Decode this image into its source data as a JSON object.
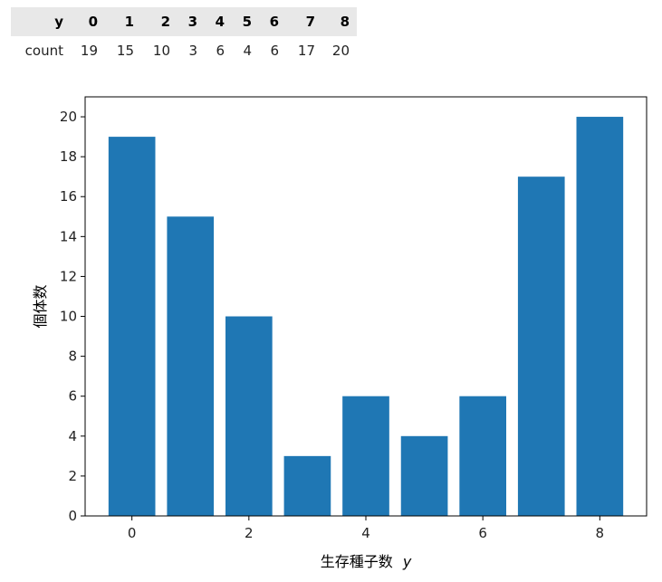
{
  "table": {
    "header_label": "y",
    "row_label": "count",
    "columns": [
      "0",
      "1",
      "2",
      "3",
      "4",
      "5",
      "6",
      "7",
      "8"
    ],
    "values": [
      "19",
      "15",
      "10",
      "3",
      "6",
      "4",
      "6",
      "17",
      "20"
    ]
  },
  "chart_data": {
    "type": "bar",
    "categories": [
      0,
      1,
      2,
      3,
      4,
      5,
      6,
      7,
      8
    ],
    "values": [
      19,
      15,
      10,
      3,
      6,
      4,
      6,
      17,
      20
    ],
    "xlabel_text": "生存種子数",
    "xlabel_var": "y",
    "ylabel": "個体数",
    "xlim": [
      -0.8,
      8.8
    ],
    "ylim": [
      0,
      21
    ],
    "xticks": [
      0,
      2,
      4,
      6,
      8
    ],
    "yticks": [
      0,
      2,
      4,
      6,
      8,
      10,
      12,
      14,
      16,
      18,
      20
    ],
    "bar_color": "#1f77b4",
    "grid": false
  }
}
